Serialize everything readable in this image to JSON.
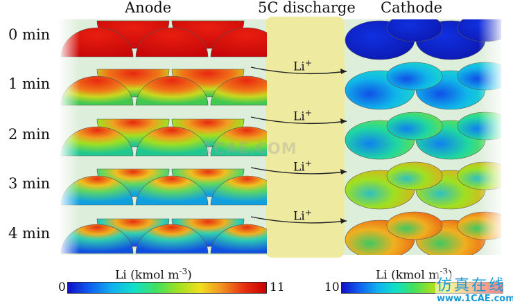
{
  "headers": {
    "anode": "Anode",
    "discharge": "5C discharge",
    "cathode": "Cathode"
  },
  "rows": [
    {
      "time": "0 min",
      "arrow": null
    },
    {
      "time": "1 min",
      "arrow": "Li"
    },
    {
      "time": "2 min",
      "arrow": "Li"
    },
    {
      "time": "3 min",
      "arrow": "Li"
    },
    {
      "time": "4 min",
      "arrow": "Li"
    }
  ],
  "ion_charge": "+",
  "anode_colorbar": {
    "label": "Li (kmol m",
    "exponent": "-3",
    "close": ")",
    "min": "0",
    "max": "11"
  },
  "cathode_colorbar": {
    "label": "Li (kmol m",
    "exponent": "-3",
    "close": ")",
    "min": "10"
  },
  "watermark": "1CAE.COM",
  "brand": {
    "chinese": "仿真在线",
    "url": "www.1CAE.com"
  },
  "colors": {
    "panel_background": "#ddeeda",
    "discharge_band": "#eeeaa0",
    "rainbow": [
      "#1010c8",
      "#1060f0",
      "#10b0f0",
      "#10e0c8",
      "#40e060",
      "#a0e020",
      "#f0e020",
      "#f09020",
      "#e83010",
      "#c80000"
    ]
  }
}
